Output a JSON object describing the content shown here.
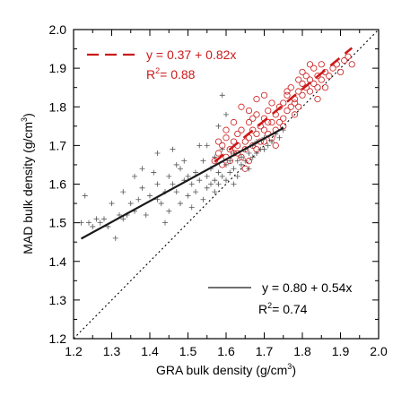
{
  "chart_data": {
    "type": "scatter",
    "title": "",
    "xlabel": {
      "main": "GRA bulk density (g/cm",
      "sup": "3",
      "end": ")"
    },
    "ylabel": {
      "main": "MAD bulk density (g/cm",
      "sup": "3",
      "end": ")"
    },
    "xlim": [
      1.2,
      2.0
    ],
    "ylim": [
      1.2,
      2.0
    ],
    "x_ticks": [
      "1.2",
      "1.3",
      "1.4",
      "1.5",
      "1.6",
      "1.7",
      "1.8",
      "1.9",
      "2.0"
    ],
    "y_ticks": [
      "1.2",
      "1.3",
      "1.4",
      "1.5",
      "1.6",
      "1.7",
      "1.8",
      "1.9",
      "2.0"
    ],
    "grid": false,
    "reference_line": {
      "style": "dotted 1:1",
      "from": [
        1.2,
        1.2
      ],
      "to": [
        2.0,
        2.0
      ]
    },
    "series": [
      {
        "marker": "plus",
        "color": "#555555",
        "fit": {
          "equation": "y = 0.80 + 0.54x",
          "r2_prefix": "R",
          "r2_sup": "2",
          "r2_value": "= 0.74",
          "x_range": [
            1.22,
            1.75
          ],
          "intercept": 0.8,
          "slope": 0.54,
          "line_color": "#1a1a1a",
          "line_style": "solid"
        },
        "points": [
          [
            1.23,
            1.57
          ],
          [
            1.22,
            1.5
          ],
          [
            1.24,
            1.5
          ],
          [
            1.26,
            1.51
          ],
          [
            1.25,
            1.49
          ],
          [
            1.27,
            1.5
          ],
          [
            1.28,
            1.51
          ],
          [
            1.29,
            1.49
          ],
          [
            1.3,
            1.55
          ],
          [
            1.31,
            1.46
          ],
          [
            1.32,
            1.52
          ],
          [
            1.33,
            1.51
          ],
          [
            1.34,
            1.52
          ],
          [
            1.35,
            1.55
          ],
          [
            1.36,
            1.53
          ],
          [
            1.37,
            1.56
          ],
          [
            1.36,
            1.62
          ],
          [
            1.38,
            1.59
          ],
          [
            1.39,
            1.52
          ],
          [
            1.4,
            1.57
          ],
          [
            1.41,
            1.63
          ],
          [
            1.42,
            1.56
          ],
          [
            1.42,
            1.6
          ],
          [
            1.43,
            1.55
          ],
          [
            1.44,
            1.58
          ],
          [
            1.45,
            1.53
          ],
          [
            1.45,
            1.62
          ],
          [
            1.46,
            1.6
          ],
          [
            1.47,
            1.58
          ],
          [
            1.47,
            1.65
          ],
          [
            1.48,
            1.64
          ],
          [
            1.48,
            1.55
          ],
          [
            1.49,
            1.61
          ],
          [
            1.5,
            1.62
          ],
          [
            1.5,
            1.57
          ],
          [
            1.51,
            1.6
          ],
          [
            1.52,
            1.58
          ],
          [
            1.52,
            1.63
          ],
          [
            1.53,
            1.61
          ],
          [
            1.54,
            1.66
          ],
          [
            1.54,
            1.56
          ],
          [
            1.55,
            1.59
          ],
          [
            1.55,
            1.62
          ],
          [
            1.56,
            1.64
          ],
          [
            1.56,
            1.6
          ],
          [
            1.57,
            1.61
          ],
          [
            1.57,
            1.67
          ],
          [
            1.58,
            1.63
          ],
          [
            1.58,
            1.6
          ],
          [
            1.59,
            1.62
          ],
          [
            1.59,
            1.69
          ],
          [
            1.6,
            1.65
          ],
          [
            1.6,
            1.61
          ],
          [
            1.61,
            1.66
          ],
          [
            1.61,
            1.63
          ],
          [
            1.62,
            1.64
          ],
          [
            1.62,
            1.68
          ],
          [
            1.63,
            1.66
          ],
          [
            1.63,
            1.62
          ],
          [
            1.64,
            1.67
          ],
          [
            1.64,
            1.65
          ],
          [
            1.65,
            1.69
          ],
          [
            1.65,
            1.66
          ],
          [
            1.66,
            1.68
          ],
          [
            1.66,
            1.64
          ],
          [
            1.67,
            1.7
          ],
          [
            1.67,
            1.67
          ],
          [
            1.68,
            1.71
          ],
          [
            1.68,
            1.68
          ],
          [
            1.69,
            1.69
          ],
          [
            1.7,
            1.72
          ],
          [
            1.7,
            1.69
          ],
          [
            1.71,
            1.7
          ],
          [
            1.72,
            1.71
          ],
          [
            1.73,
            1.73
          ],
          [
            1.74,
            1.72
          ],
          [
            1.75,
            1.74
          ],
          [
            1.58,
            1.75
          ],
          [
            1.6,
            1.78
          ],
          [
            1.59,
            1.83
          ],
          [
            1.53,
            1.7
          ],
          [
            1.46,
            1.69
          ],
          [
            1.42,
            1.68
          ],
          [
            1.49,
            1.66
          ],
          [
            1.55,
            1.7
          ],
          [
            1.38,
            1.64
          ],
          [
            1.33,
            1.58
          ],
          [
            1.44,
            1.5
          ],
          [
            1.51,
            1.54
          ],
          [
            1.57,
            1.58
          ],
          [
            1.62,
            1.6
          ]
        ]
      },
      {
        "marker": "open-circle",
        "color": "#cc1a1a",
        "fit": {
          "equation": "y = 0.37 + 0.82x",
          "r2_prefix": "R",
          "r2_sup": "2",
          "r2_value": "= 0.88",
          "x_range": [
            1.57,
            1.93
          ],
          "intercept": 0.37,
          "slope": 0.82,
          "line_color": "#cc1a1a",
          "line_style": "dashed"
        },
        "points": [
          [
            1.57,
            1.66
          ],
          [
            1.58,
            1.68
          ],
          [
            1.59,
            1.65
          ],
          [
            1.59,
            1.7
          ],
          [
            1.6,
            1.67
          ],
          [
            1.6,
            1.72
          ],
          [
            1.61,
            1.69
          ],
          [
            1.61,
            1.66
          ],
          [
            1.62,
            1.71
          ],
          [
            1.62,
            1.68
          ],
          [
            1.63,
            1.73
          ],
          [
            1.63,
            1.7
          ],
          [
            1.64,
            1.67
          ],
          [
            1.64,
            1.74
          ],
          [
            1.65,
            1.71
          ],
          [
            1.65,
            1.69
          ],
          [
            1.66,
            1.72
          ],
          [
            1.66,
            1.76
          ],
          [
            1.67,
            1.7
          ],
          [
            1.67,
            1.74
          ],
          [
            1.68,
            1.73
          ],
          [
            1.68,
            1.78
          ],
          [
            1.69,
            1.71
          ],
          [
            1.69,
            1.75
          ],
          [
            1.7,
            1.74
          ],
          [
            1.7,
            1.77
          ],
          [
            1.71,
            1.73
          ],
          [
            1.71,
            1.79
          ],
          [
            1.72,
            1.76
          ],
          [
            1.72,
            1.72
          ],
          [
            1.73,
            1.78
          ],
          [
            1.73,
            1.74
          ],
          [
            1.74,
            1.8
          ],
          [
            1.74,
            1.76
          ],
          [
            1.75,
            1.77
          ],
          [
            1.75,
            1.81
          ],
          [
            1.76,
            1.79
          ],
          [
            1.76,
            1.83
          ],
          [
            1.77,
            1.8
          ],
          [
            1.77,
            1.85
          ],
          [
            1.78,
            1.82
          ],
          [
            1.78,
            1.78
          ],
          [
            1.79,
            1.84
          ],
          [
            1.79,
            1.87
          ],
          [
            1.8,
            1.83
          ],
          [
            1.8,
            1.86
          ],
          [
            1.81,
            1.85
          ],
          [
            1.81,
            1.88
          ],
          [
            1.82,
            1.84
          ],
          [
            1.82,
            1.87
          ],
          [
            1.83,
            1.86
          ],
          [
            1.83,
            1.9
          ],
          [
            1.84,
            1.88
          ],
          [
            1.84,
            1.85
          ],
          [
            1.85,
            1.87
          ],
          [
            1.85,
            1.91
          ],
          [
            1.86,
            1.89
          ],
          [
            1.87,
            1.88
          ],
          [
            1.88,
            1.9
          ],
          [
            1.89,
            1.91
          ],
          [
            1.9,
            1.89
          ],
          [
            1.91,
            1.92
          ],
          [
            1.92,
            1.93
          ],
          [
            1.93,
            1.91
          ],
          [
            1.64,
            1.8
          ],
          [
            1.66,
            1.79
          ],
          [
            1.62,
            1.76
          ],
          [
            1.6,
            1.74
          ],
          [
            1.68,
            1.82
          ],
          [
            1.7,
            1.83
          ],
          [
            1.72,
            1.81
          ],
          [
            1.58,
            1.71
          ],
          [
            1.66,
            1.66
          ],
          [
            1.68,
            1.69
          ],
          [
            1.7,
            1.71
          ],
          [
            1.73,
            1.7
          ],
          [
            1.75,
            1.75
          ],
          [
            1.78,
            1.81
          ],
          [
            1.8,
            1.89
          ],
          [
            1.82,
            1.91
          ],
          [
            1.84,
            1.82
          ],
          [
            1.86,
            1.85
          ],
          [
            1.63,
            1.68
          ],
          [
            1.65,
            1.64
          ],
          [
            1.67,
            1.77
          ],
          [
            1.71,
            1.76
          ],
          [
            1.76,
            1.84
          ],
          [
            1.79,
            1.8
          ]
        ]
      }
    ]
  }
}
